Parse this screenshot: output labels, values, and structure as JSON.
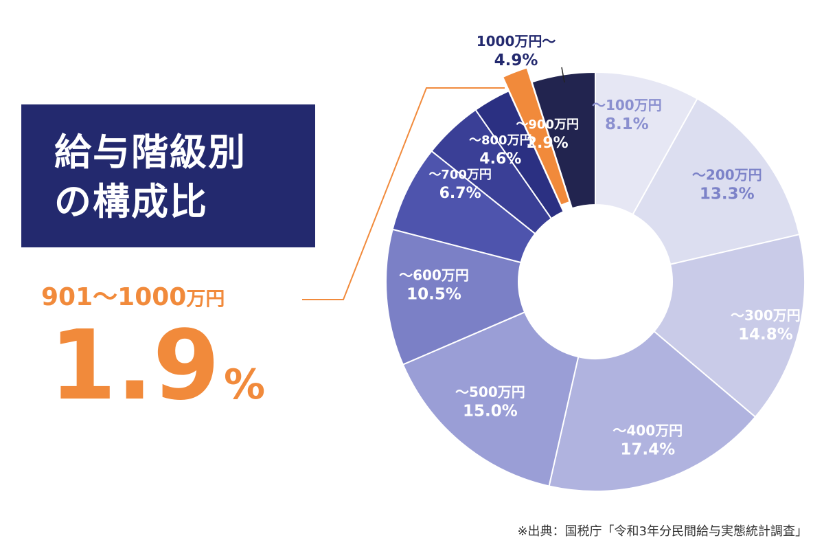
{
  "title": {
    "line1": "給与階級別",
    "line2": "の構成比"
  },
  "highlight": {
    "range_label": "901〜1000",
    "unit": "万円",
    "percent": "1.9",
    "percent_sign": "%"
  },
  "source": "※出典：国税庁「令和3年分民間給与実態統計調査」",
  "chart_data": {
    "type": "pie",
    "style": "donut",
    "slices": [
      {
        "label": "〜100万円",
        "value": 8.1,
        "value_label": "8.1%",
        "color": "#e6e7f4",
        "text_color": "#8a8fcf"
      },
      {
        "label": "〜200万円",
        "value": 13.3,
        "value_label": "13.3%",
        "color": "#dcdef0",
        "text_color": "#7c82c8"
      },
      {
        "label": "〜300万円",
        "value": 14.8,
        "value_label": "14.8%",
        "color": "#c9cbe8",
        "text_color": "#ffffff"
      },
      {
        "label": "〜400万円",
        "value": 17.4,
        "value_label": "17.4%",
        "color": "#b0b3df",
        "text_color": "#ffffff"
      },
      {
        "label": "〜500万円",
        "value": 15.0,
        "value_label": "15.0%",
        "color": "#9a9ed6",
        "text_color": "#ffffff"
      },
      {
        "label": "〜600万円",
        "value": 10.5,
        "value_label": "10.5%",
        "color": "#7b80c6",
        "text_color": "#ffffff"
      },
      {
        "label": "〜700万円",
        "value": 6.7,
        "value_label": "6.7%",
        "color": "#4e54ad",
        "text_color": "#ffffff"
      },
      {
        "label": "〜800万円",
        "value": 4.6,
        "value_label": "4.6%",
        "color": "#3a3f96",
        "text_color": "#ffffff"
      },
      {
        "label": "〜900万円",
        "value": 2.9,
        "value_label": "2.9%",
        "color": "#2b3082",
        "text_color": "#ffffff"
      },
      {
        "label": "901〜1000万円",
        "value": 1.9,
        "value_label": "1.9%",
        "color": "#f18a3b",
        "highlight": true
      },
      {
        "label": "1000万円〜",
        "value": 4.9,
        "value_label": "4.9%",
        "color": "#22244f",
        "text_color": "#23296e"
      }
    ]
  },
  "colors": {
    "navy": "#23296e",
    "orange": "#f18a3b"
  }
}
